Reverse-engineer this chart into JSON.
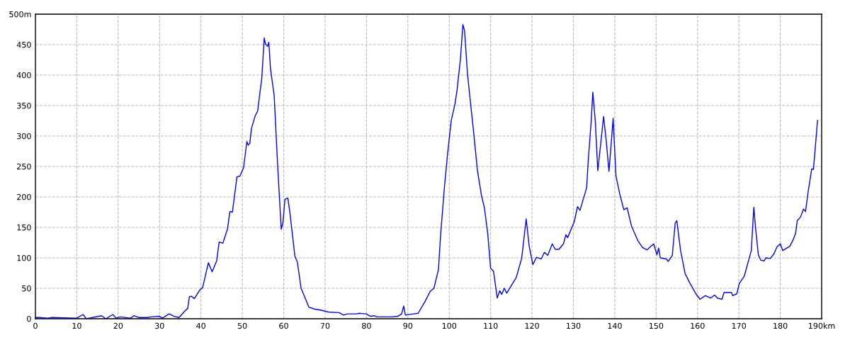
{
  "chart_data": {
    "type": "line",
    "x": [
      0,
      1,
      3,
      4,
      10,
      11.5,
      12.3,
      16,
      17,
      18.7,
      19.5,
      20.5,
      23,
      23.8,
      25,
      27,
      28,
      30,
      30.7,
      32.3,
      33.5,
      34.7,
      36.0,
      36.8,
      37.2,
      37.7,
      38.4,
      39.7,
      40.4,
      41.8,
      42.7,
      43.8,
      44.4,
      45.3,
      46.4,
      47.0,
      47.6,
      48.7,
      49.4,
      50.3,
      51.1,
      51.4,
      51.8,
      52.2,
      53.1,
      53.7,
      54.7,
      55.3,
      55.6,
      56.1,
      56.4,
      56.8,
      57.7,
      58.5,
      59.4,
      59.8,
      60.3,
      61.0,
      61.5,
      62.7,
      63.3,
      64.2,
      66.1,
      67.4,
      69.1,
      70.8,
      73.4,
      74.5,
      75.4,
      77.6,
      78.2,
      79.9,
      81.0,
      81.9,
      82.5,
      85.9,
      87.6,
      88.5,
      89.0,
      89.4,
      91.4,
      92.5,
      94.2,
      95.4,
      96.3,
      97.4,
      97.9,
      98.8,
      99.6,
      100.5,
      101.4,
      101.9,
      102.7,
      103.3,
      103.7,
      104.4,
      105.1,
      105.9,
      106.8,
      107.8,
      108.5,
      109.3,
      110.0,
      110.7,
      111.6,
      112.2,
      112.7,
      113.3,
      113.9,
      116.2,
      117.5,
      118.6,
      119.3,
      120.2,
      121.1,
      122.2,
      123.0,
      123.8,
      124.9,
      125.6,
      126.5,
      127.6,
      128.2,
      128.6,
      130.2,
      131.0,
      131.6,
      133.2,
      133.6,
      134.3,
      134.7,
      135.3,
      135.9,
      136.6,
      137.3,
      137.9,
      138.6,
      139.0,
      139.6,
      140.3,
      141.3,
      142.2,
      143.0,
      144.0,
      145.6,
      146.7,
      147.8,
      149.4,
      150.2,
      150.6,
      151.0,
      152.5,
      152.9,
      153.9,
      154.6,
      155.0,
      155.9,
      157.0,
      158.2,
      159.6,
      160.6,
      161.9,
      163.2,
      164.1,
      164.8,
      165.9,
      166.4,
      168.2,
      168.5,
      169.5,
      170.1,
      171.3,
      173.0,
      173.6,
      174.0,
      174.7,
      175.3,
      176.1,
      176.5,
      177.6,
      178.5,
      179.2,
      180.0,
      180.6,
      182.3,
      183.0,
      183.7,
      184.1,
      184.9,
      185.6,
      186.1,
      186.7,
      187.6,
      188.0,
      188.4,
      189.0
    ],
    "series": [
      {
        "color": "#0000ff",
        "values": [
          2,
          2,
          1,
          2,
          1,
          7,
          0,
          5,
          0,
          7,
          1,
          3,
          1,
          5,
          2,
          2,
          3,
          4,
          1,
          8,
          4,
          2,
          12,
          17,
          36,
          37,
          33,
          47,
          51,
          92,
          77,
          95,
          126,
          124,
          147,
          176,
          175,
          233,
          234,
          248,
          291,
          285,
          288,
          312,
          333,
          341,
          395,
          461,
          451,
          447,
          454,
          411,
          366,
          256,
          147,
          157,
          196,
          198,
          174,
          103,
          93,
          50,
          19,
          16,
          14,
          11,
          10,
          6,
          8,
          8,
          9,
          8,
          4,
          5,
          3,
          3,
          4,
          8,
          21,
          6,
          8,
          9,
          29,
          45,
          50,
          81,
          136,
          213,
          271,
          326,
          353,
          376,
          426,
          483,
          473,
          403,
          357,
          306,
          244,
          202,
          182,
          140,
          83,
          78,
          34,
          46,
          40,
          50,
          42,
          68,
          99,
          164,
          120,
          89,
          101,
          98,
          109,
          104,
          123,
          114,
          114,
          123,
          138,
          133,
          159,
          184,
          178,
          215,
          260,
          324,
          372,
          324,
          243,
          287,
          332,
          295,
          242,
          275,
          329,
          234,
          202,
          179,
          182,
          153,
          128,
          117,
          113,
          123,
          105,
          116,
          100,
          98,
          94,
          104,
          157,
          161,
          112,
          74,
          58,
          41,
          32,
          38,
          34,
          39,
          34,
          32,
          43,
          43,
          38,
          41,
          58,
          70,
          112,
          183,
          151,
          105,
          96,
          95,
          100,
          99,
          107,
          118,
          123,
          112,
          119,
          128,
          140,
          161,
          167,
          180,
          176,
          207,
          246,
          245,
          276,
          326
        ]
      }
    ],
    "xlim": [
      0,
      190
    ],
    "xticks": [
      0,
      10,
      20,
      30,
      40,
      50,
      60,
      70,
      80,
      90,
      100,
      110,
      120,
      130,
      140,
      150,
      160,
      170,
      180,
      {
        "value": 190,
        "label": "190km"
      }
    ],
    "ylim": [
      0,
      500
    ],
    "yticks": [
      0,
      50,
      100,
      150,
      200,
      250,
      300,
      350,
      400,
      450,
      {
        "value": 500,
        "label": "500m"
      }
    ],
    "grid": true,
    "line_style": "solid",
    "legend": false
  }
}
